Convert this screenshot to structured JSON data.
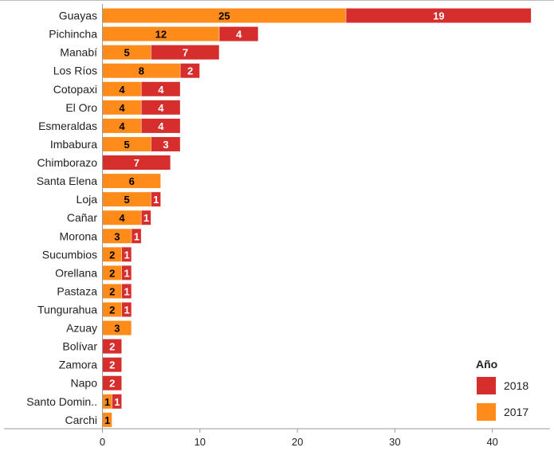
{
  "chart_data": {
    "type": "bar",
    "orientation": "horizontal",
    "stacked": true,
    "categories": [
      "Guayas",
      "Pichincha",
      "Manabí",
      "Los Ríos",
      "Cotopaxi",
      "El Oro",
      "Esmeraldas",
      "Imbabura",
      "Chimborazo",
      "Santa Elena",
      "Loja",
      "Cañar",
      "Morona",
      "Sucumbios",
      "Orellana",
      "Pastaza",
      "Tungurahua",
      "Azuay",
      "Bolívar",
      "Zamora",
      "Napo",
      "Santo Domin..",
      "Carchi"
    ],
    "series": [
      {
        "name": "2017",
        "color": "#ff8c1a",
        "label_color": "#000000",
        "values": [
          25,
          12,
          5,
          8,
          4,
          4,
          4,
          5,
          0,
          6,
          5,
          4,
          3,
          2,
          2,
          2,
          2,
          3,
          0,
          0,
          0,
          1,
          1
        ]
      },
      {
        "name": "2018",
        "color": "#d62d2d",
        "label_color": "#ffffff",
        "values": [
          19,
          4,
          7,
          2,
          4,
          4,
          4,
          3,
          7,
          0,
          1,
          1,
          1,
          1,
          1,
          1,
          1,
          0,
          2,
          2,
          2,
          1,
          0
        ]
      }
    ],
    "xlim": [
      0,
      46
    ],
    "x_ticks": [
      0,
      10,
      20,
      30,
      40
    ],
    "xlabel": "",
    "ylabel": "",
    "grid": false,
    "legend": {
      "title": "Año",
      "placement": "bottom-right",
      "entries": [
        {
          "name": "2018",
          "color": "#d62d2d"
        },
        {
          "name": "2017",
          "color": "#ff8c1a"
        }
      ]
    }
  }
}
